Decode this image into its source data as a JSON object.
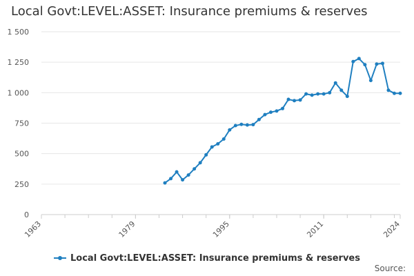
{
  "title": "Local Govt:LEVEL:ASSET: Insurance premiums & reserves",
  "source_label": "Source:",
  "colors": {
    "series": "#1f7fc0",
    "grid": "#e6e6e6",
    "axis": "#cccccc"
  },
  "chart_data": {
    "type": "line",
    "title": "Local Govt:LEVEL:ASSET: Insurance premiums & reserves",
    "xlabel": "",
    "ylabel": "",
    "xlim": [
      1963,
      2024
    ],
    "ylim": [
      0,
      1500
    ],
    "x_ticks": [
      1963,
      1979,
      1995,
      2011,
      2024
    ],
    "y_ticks": [
      0,
      250,
      500,
      750,
      1000,
      1250,
      1500
    ],
    "y_tick_labels": [
      "0",
      "250",
      "500",
      "750",
      "1 000",
      "1 250",
      "1 500"
    ],
    "grid": true,
    "legend": "bottom",
    "series": [
      {
        "name": "Local Govt:LEVEL:ASSET: Insurance premiums & reserves",
        "x": [
          1984,
          1985,
          1986,
          1987,
          1988,
          1989,
          1990,
          1991,
          1992,
          1993,
          1994,
          1995,
          1996,
          1997,
          1998,
          1999,
          2000,
          2001,
          2002,
          2003,
          2004,
          2005,
          2006,
          2007,
          2008,
          2009,
          2010,
          2011,
          2012,
          2013,
          2014,
          2015,
          2016,
          2017,
          2018,
          2019,
          2020,
          2021,
          2022,
          2023,
          2024
        ],
        "y": [
          260,
          295,
          350,
          285,
          325,
          375,
          425,
          490,
          555,
          580,
          620,
          695,
          730,
          740,
          735,
          738,
          780,
          820,
          840,
          850,
          870,
          945,
          935,
          940,
          990,
          980,
          990,
          990,
          1000,
          1080,
          1020,
          970,
          1255,
          1280,
          1230,
          1100,
          1235,
          1240,
          1020,
          995,
          995
        ]
      }
    ]
  }
}
